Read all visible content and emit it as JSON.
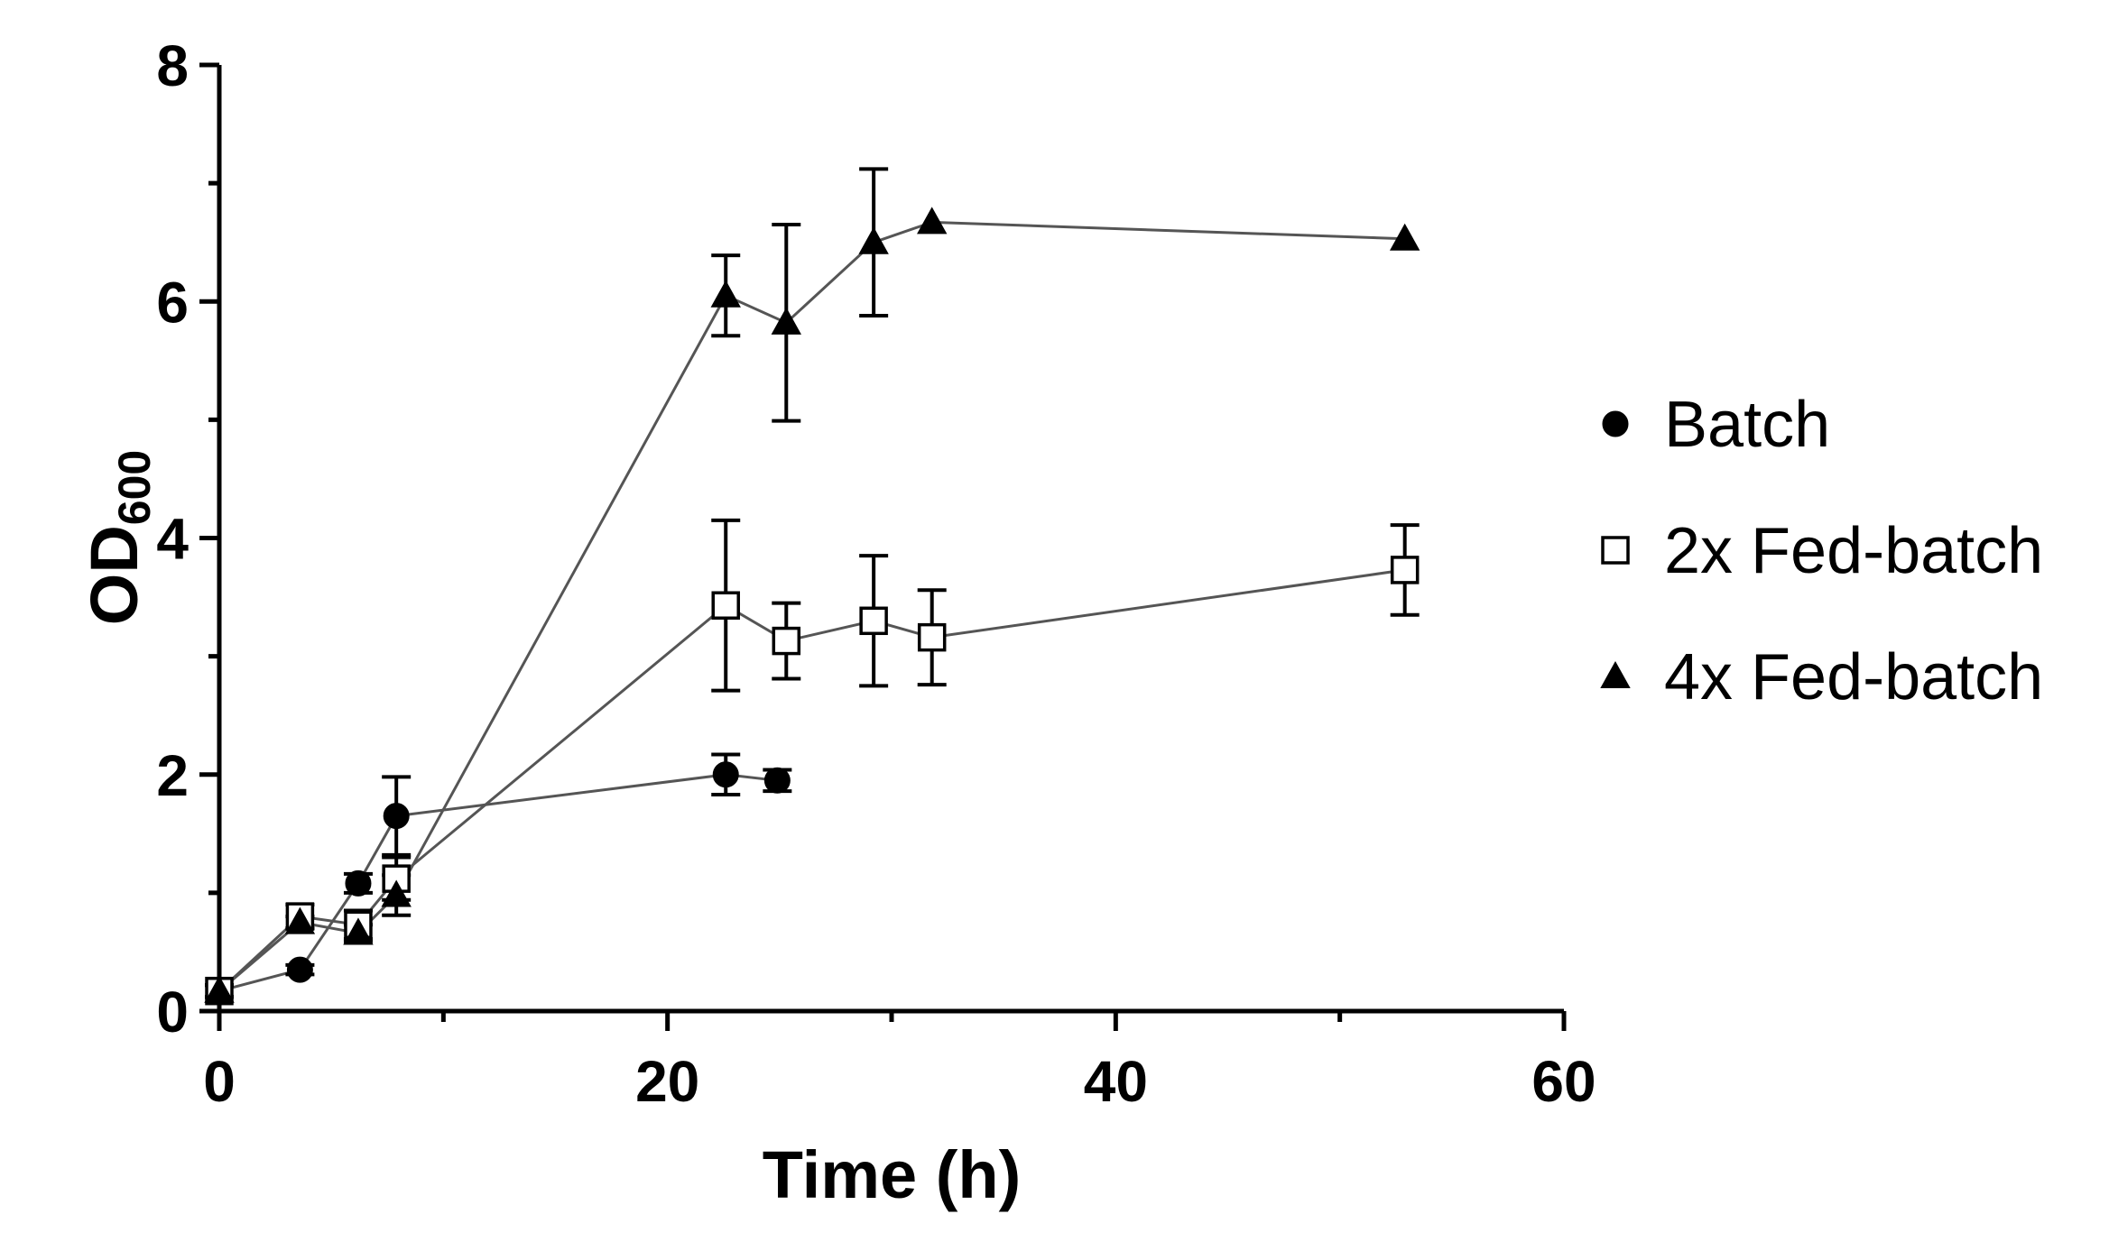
{
  "chart_data": {
    "type": "line",
    "title": "",
    "xlabel": "Time (h)",
    "ylabel_main": "OD",
    "ylabel_sub": "600",
    "xlim": [
      0,
      60
    ],
    "ylim": [
      0,
      8
    ],
    "x_ticks": [
      0,
      20,
      40,
      60
    ],
    "y_ticks": [
      0,
      2,
      4,
      6,
      8
    ],
    "x_tick_labels": [
      "0",
      "20",
      "40",
      "60"
    ],
    "y_tick_labels": [
      "0",
      "2",
      "4",
      "6",
      "8"
    ],
    "legend_position": "right",
    "series": [
      {
        "name": "Batch",
        "marker": "circle",
        "filled": true,
        "x": [
          0,
          3.6,
          6.2,
          7.9,
          22.6,
          24.9
        ],
        "y": [
          0.17,
          0.35,
          1.08,
          1.65,
          2.0,
          1.95
        ],
        "err": [
          0.05,
          0.04,
          0.08,
          0.33,
          0.17,
          0.09
        ]
      },
      {
        "name": "2x Fed-batch",
        "marker": "square",
        "filled": false,
        "x": [
          0,
          3.6,
          6.2,
          7.9,
          22.6,
          25.3,
          29.2,
          31.8,
          52.9
        ],
        "y": [
          0.17,
          0.8,
          0.73,
          1.12,
          3.43,
          3.13,
          3.3,
          3.16,
          3.73
        ],
        "err": [
          0.05,
          0.1,
          0.12,
          0.18,
          0.72,
          0.32,
          0.55,
          0.4,
          0.38
        ]
      },
      {
        "name": "4x Fed-batch",
        "marker": "triangle",
        "filled": true,
        "x": [
          0,
          3.6,
          6.2,
          7.9,
          22.6,
          25.3,
          29.2,
          31.8,
          52.9
        ],
        "y": [
          0.17,
          0.75,
          0.66,
          0.98,
          6.05,
          5.82,
          6.5,
          6.67,
          6.53
        ],
        "err": [
          0.05,
          0.05,
          0.07,
          0.17,
          0.34,
          0.83,
          0.62,
          0.0,
          0.0
        ]
      }
    ]
  },
  "colors": {
    "marker": "#000000",
    "line": "#555555",
    "background": "#ffffff"
  }
}
